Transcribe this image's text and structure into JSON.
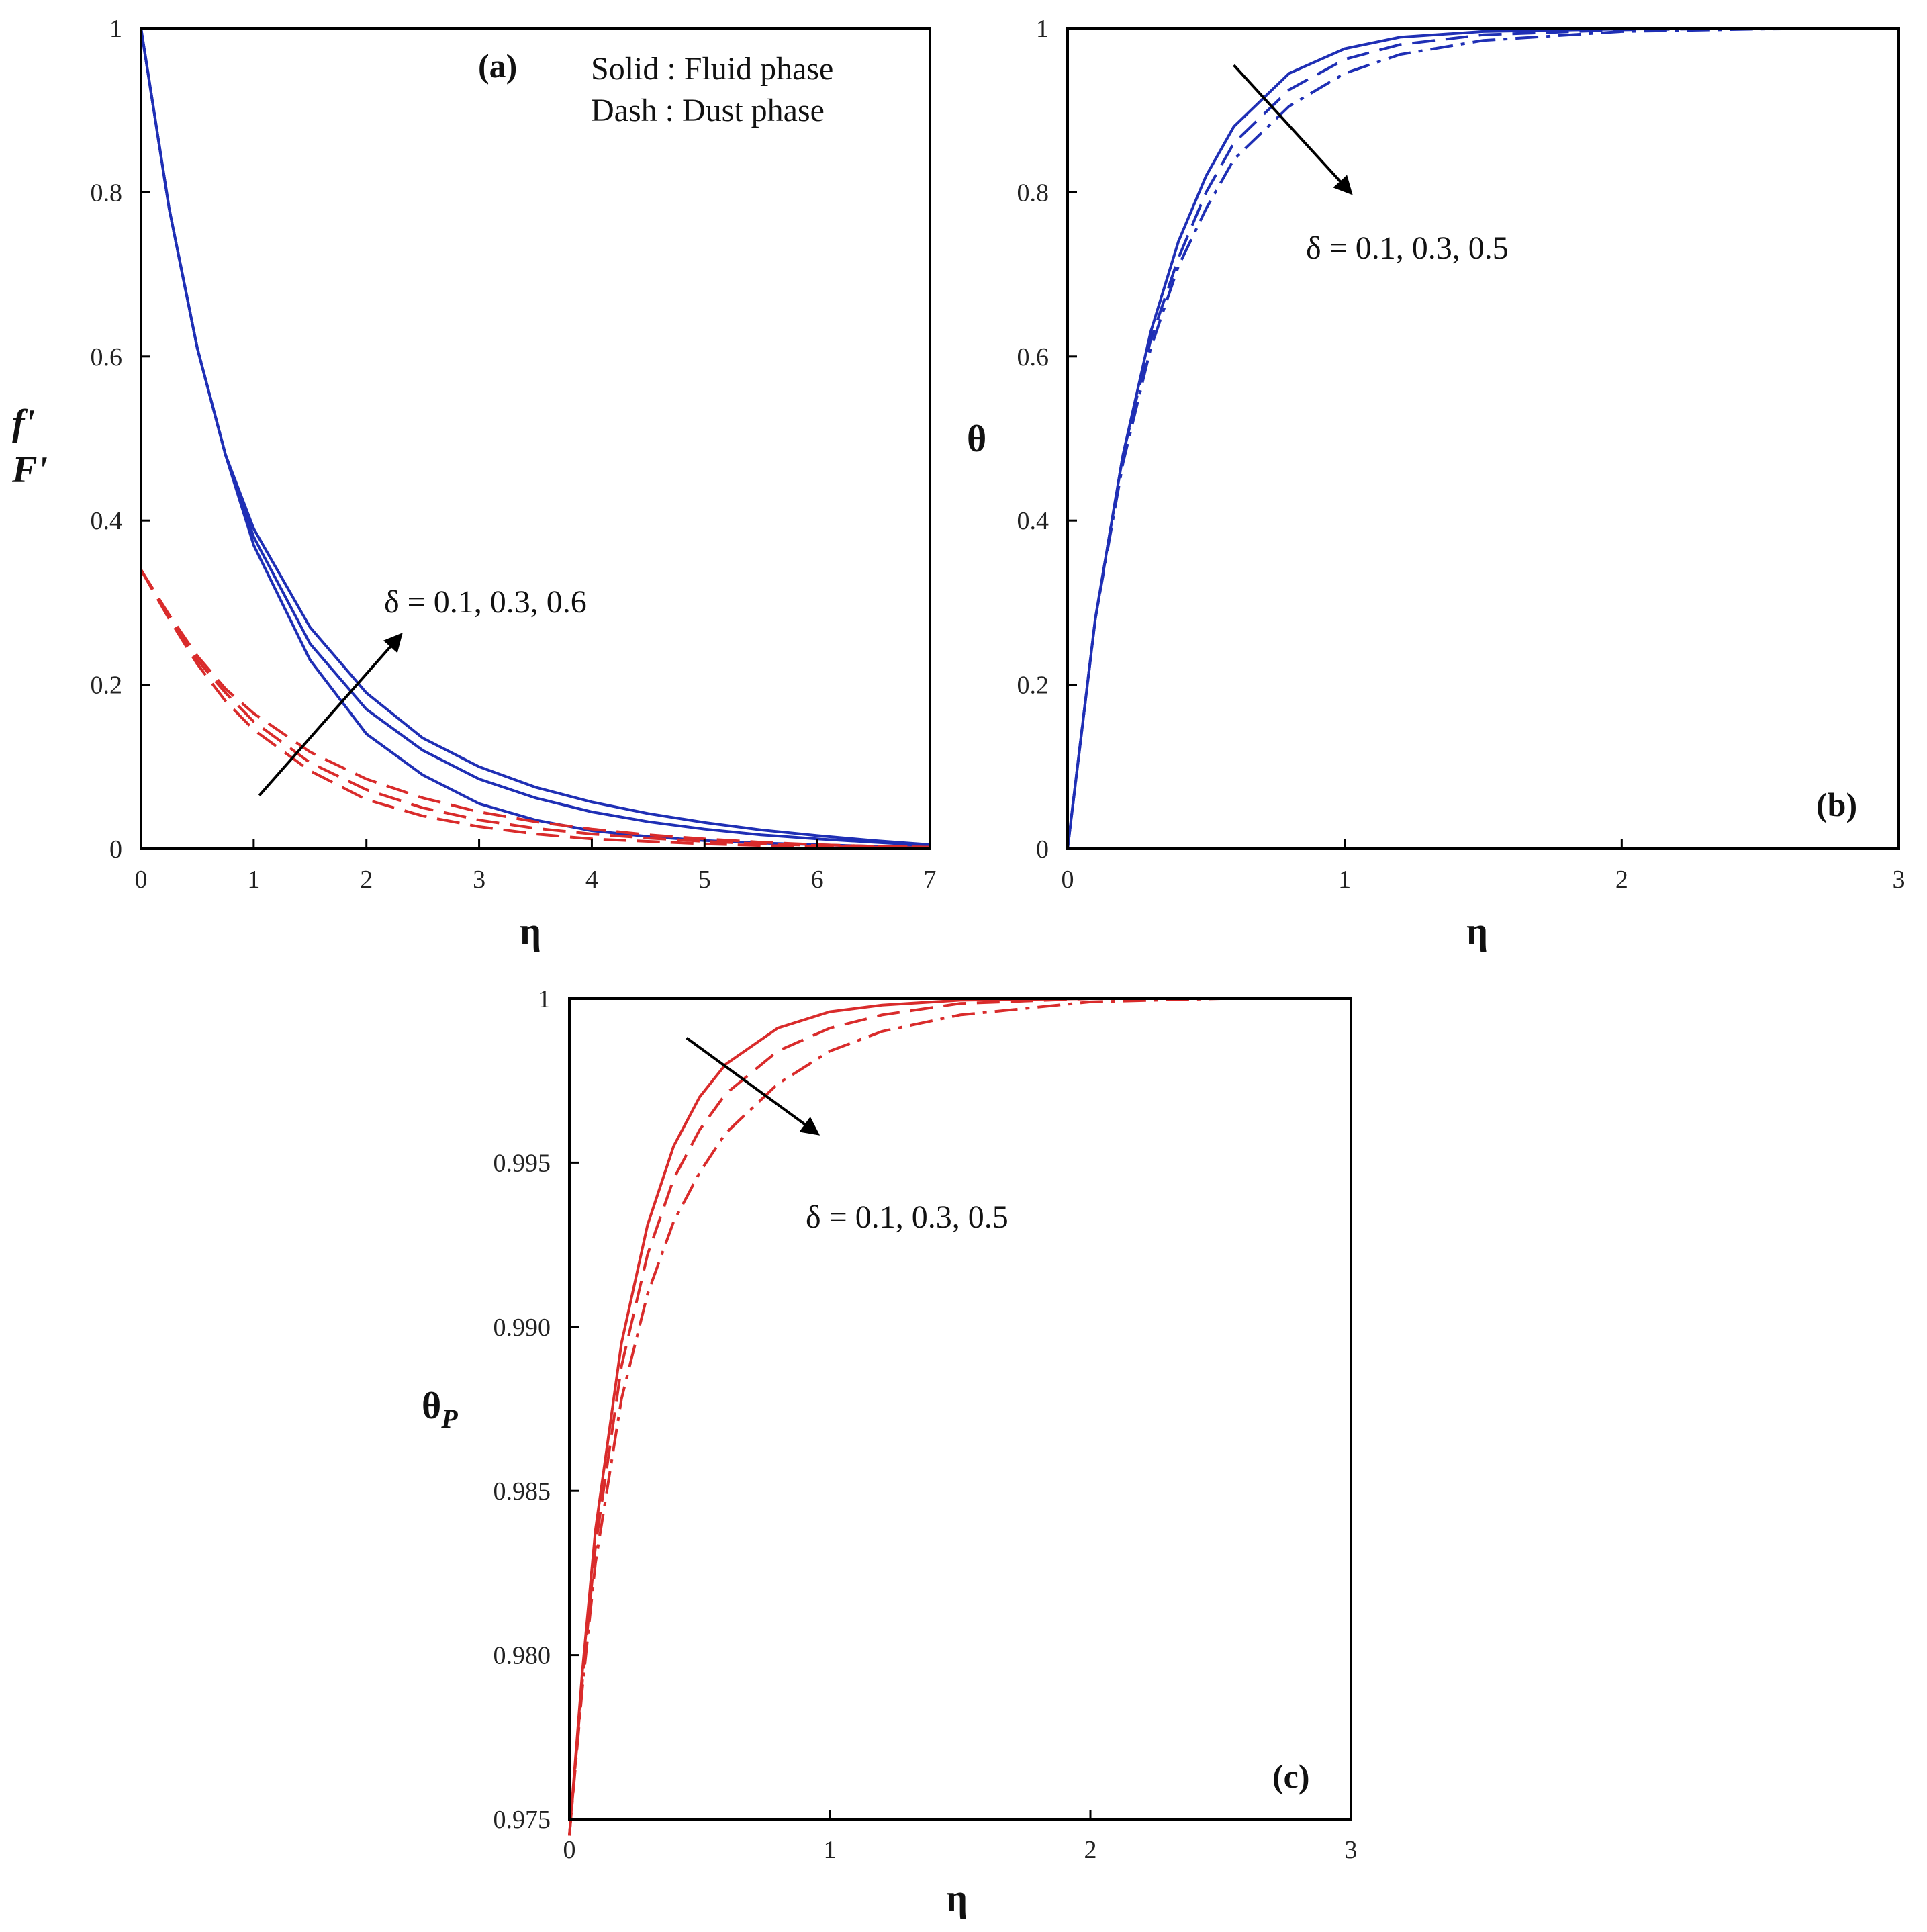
{
  "colors": {
    "fluid": "#1f2fb5",
    "dust": "#d92b2b",
    "arrow": "#000000"
  },
  "chart_data": [
    {
      "type": "line",
      "panel_label": "(a)",
      "xlabel": "η",
      "ylabel": [
        "f'",
        "F'"
      ],
      "xlim": [
        0,
        7
      ],
      "ylim": [
        0,
        1
      ],
      "xticks": [
        "0",
        "1",
        "2",
        "3",
        "4",
        "5",
        "6",
        "7"
      ],
      "yticks": [
        "0",
        "0.2",
        "0.4",
        "0.6",
        "0.8",
        "1"
      ],
      "legend_lines": [
        "Solid  : Fluid phase",
        "Dash : Dust phase"
      ],
      "annotation": "δ = 0.1, 0.3, 0.6",
      "arrow_from": [
        1.05,
        0.065
      ],
      "arrow_to": [
        2.3,
        0.26
      ],
      "series": [
        {
          "group": "fluid",
          "style": "solid",
          "x": [
            0,
            0.25,
            0.5,
            0.75,
            1,
            1.5,
            2,
            2.5,
            3,
            3.5,
            4,
            4.5,
            5,
            5.5,
            6,
            6.5,
            7
          ],
          "y": [
            1.0,
            0.78,
            0.61,
            0.48,
            0.37,
            0.23,
            0.14,
            0.09,
            0.055,
            0.035,
            0.022,
            0.015,
            0.01,
            0.007,
            0.005,
            0.003,
            0.002
          ]
        },
        {
          "group": "fluid",
          "style": "solid",
          "x": [
            0,
            0.25,
            0.5,
            0.75,
            1,
            1.5,
            2,
            2.5,
            3,
            3.5,
            4,
            4.5,
            5,
            5.5,
            6,
            6.5,
            7
          ],
          "y": [
            1.0,
            0.78,
            0.61,
            0.48,
            0.38,
            0.25,
            0.17,
            0.12,
            0.085,
            0.062,
            0.045,
            0.033,
            0.024,
            0.017,
            0.012,
            0.008,
            0.004
          ]
        },
        {
          "group": "fluid",
          "style": "solid",
          "x": [
            0,
            0.25,
            0.5,
            0.75,
            1,
            1.5,
            2,
            2.5,
            3,
            3.5,
            4,
            4.5,
            5,
            5.5,
            6,
            6.5,
            7
          ],
          "y": [
            1.0,
            0.78,
            0.61,
            0.48,
            0.39,
            0.27,
            0.19,
            0.135,
            0.1,
            0.075,
            0.057,
            0.043,
            0.032,
            0.023,
            0.016,
            0.01,
            0.005
          ]
        },
        {
          "group": "dust",
          "style": "dashed",
          "x": [
            0,
            0.25,
            0.5,
            0.75,
            1,
            1.5,
            2,
            2.5,
            3,
            3.5,
            4,
            4.5,
            5,
            5.5,
            6,
            6.5,
            7
          ],
          "y": [
            0.34,
            0.28,
            0.225,
            0.18,
            0.145,
            0.095,
            0.06,
            0.04,
            0.027,
            0.018,
            0.012,
            0.009,
            0.006,
            0.004,
            0.003,
            0.002,
            0.001
          ]
        },
        {
          "group": "dust",
          "style": "dashed",
          "x": [
            0,
            0.25,
            0.5,
            0.75,
            1,
            1.5,
            2,
            2.5,
            3,
            3.5,
            4,
            4.5,
            5,
            5.5,
            6,
            6.5,
            7
          ],
          "y": [
            0.34,
            0.28,
            0.23,
            0.19,
            0.155,
            0.105,
            0.072,
            0.05,
            0.035,
            0.025,
            0.018,
            0.013,
            0.009,
            0.006,
            0.004,
            0.003,
            0.002
          ]
        },
        {
          "group": "dust",
          "style": "dashed",
          "x": [
            0,
            0.25,
            0.5,
            0.75,
            1,
            1.5,
            2,
            2.5,
            3,
            3.5,
            4,
            4.5,
            5,
            5.5,
            6,
            6.5,
            7
          ],
          "y": [
            0.34,
            0.285,
            0.235,
            0.195,
            0.165,
            0.118,
            0.085,
            0.062,
            0.045,
            0.033,
            0.024,
            0.017,
            0.012,
            0.008,
            0.005,
            0.003,
            0.002
          ]
        }
      ]
    },
    {
      "type": "line",
      "panel_label": "(b)",
      "xlabel": "η",
      "ylabel": [
        "θ"
      ],
      "xlim": [
        0,
        3
      ],
      "ylim": [
        0,
        1
      ],
      "xticks": [
        "0",
        "1",
        "2",
        "3"
      ],
      "yticks": [
        "0",
        "0.2",
        "0.4",
        "0.6",
        "0.8",
        "1"
      ],
      "annotation": "δ = 0.1, 0.3, 0.5",
      "arrow_from": [
        0.6,
        0.955
      ],
      "arrow_to": [
        1.02,
        0.8
      ],
      "series": [
        {
          "group": "fluid",
          "style": "solid",
          "x": [
            0,
            0.1,
            0.2,
            0.3,
            0.4,
            0.5,
            0.6,
            0.8,
            1.0,
            1.2,
            1.5,
            2.0,
            2.5,
            3.0
          ],
          "y": [
            0,
            0.28,
            0.48,
            0.63,
            0.74,
            0.82,
            0.88,
            0.945,
            0.975,
            0.989,
            0.996,
            0.999,
            1.0,
            1.0
          ]
        },
        {
          "group": "fluid",
          "style": "dashed",
          "x": [
            0,
            0.1,
            0.2,
            0.3,
            0.4,
            0.5,
            0.6,
            0.8,
            1.0,
            1.2,
            1.5,
            2.0,
            2.5,
            3.0
          ],
          "y": [
            0,
            0.28,
            0.48,
            0.62,
            0.72,
            0.8,
            0.86,
            0.925,
            0.962,
            0.98,
            0.992,
            0.998,
            1.0,
            1.0
          ]
        },
        {
          "group": "fluid",
          "style": "dashdot",
          "x": [
            0,
            0.1,
            0.2,
            0.3,
            0.4,
            0.5,
            0.6,
            0.8,
            1.0,
            1.2,
            1.5,
            2.0,
            2.5,
            3.0
          ],
          "y": [
            0,
            0.28,
            0.47,
            0.61,
            0.71,
            0.78,
            0.84,
            0.905,
            0.945,
            0.968,
            0.985,
            0.996,
            0.999,
            1.0
          ]
        }
      ]
    },
    {
      "type": "line",
      "panel_label": "(c)",
      "xlabel": "η",
      "ylabel": [
        "θ",
        "P"
      ],
      "xlim": [
        0,
        3
      ],
      "ylim": [
        0.975,
        1
      ],
      "xticks": [
        "0",
        "1",
        "2",
        "3"
      ],
      "yticks": [
        "0.975",
        "0.980",
        "0.985",
        "0.990",
        "0.995",
        "1"
      ],
      "ytick_values": [
        0.975,
        0.98,
        0.985,
        0.99,
        0.995,
        1.0
      ],
      "annotation": "δ = 0.1, 0.3, 0.5",
      "arrow_from": [
        0.45,
        0.9988
      ],
      "arrow_to": [
        0.95,
        0.9959
      ],
      "series": [
        {
          "group": "dust",
          "style": "solid",
          "x": [
            0,
            0.05,
            0.1,
            0.2,
            0.3,
            0.4,
            0.5,
            0.6,
            0.8,
            1.0,
            1.2,
            1.5,
            2.0,
            2.5,
            3.0
          ],
          "y": [
            0.9745,
            0.9795,
            0.9838,
            0.9895,
            0.9931,
            0.9955,
            0.997,
            0.998,
            0.9991,
            0.9996,
            0.9998,
            0.99995,
            1.0,
            1.0,
            1.0
          ]
        },
        {
          "group": "dust",
          "style": "dashed",
          "x": [
            0,
            0.05,
            0.1,
            0.2,
            0.3,
            0.4,
            0.5,
            0.6,
            0.8,
            1.0,
            1.2,
            1.5,
            2.0,
            2.5,
            3.0
          ],
          "y": [
            0.9745,
            0.9792,
            0.9833,
            0.9888,
            0.9922,
            0.9945,
            0.996,
            0.9971,
            0.9984,
            0.9991,
            0.9995,
            0.99985,
            1.0,
            1.0,
            1.0
          ]
        },
        {
          "group": "dust",
          "style": "dashdot",
          "x": [
            0,
            0.05,
            0.1,
            0.2,
            0.3,
            0.4,
            0.5,
            0.6,
            0.8,
            1.0,
            1.2,
            1.5,
            2.0,
            2.5,
            3.0
          ],
          "y": [
            0.9745,
            0.979,
            0.9828,
            0.9878,
            0.991,
            0.9932,
            0.9947,
            0.9959,
            0.9974,
            0.9984,
            0.999,
            0.9995,
            0.9999,
            1.0,
            1.0
          ]
        }
      ]
    }
  ]
}
